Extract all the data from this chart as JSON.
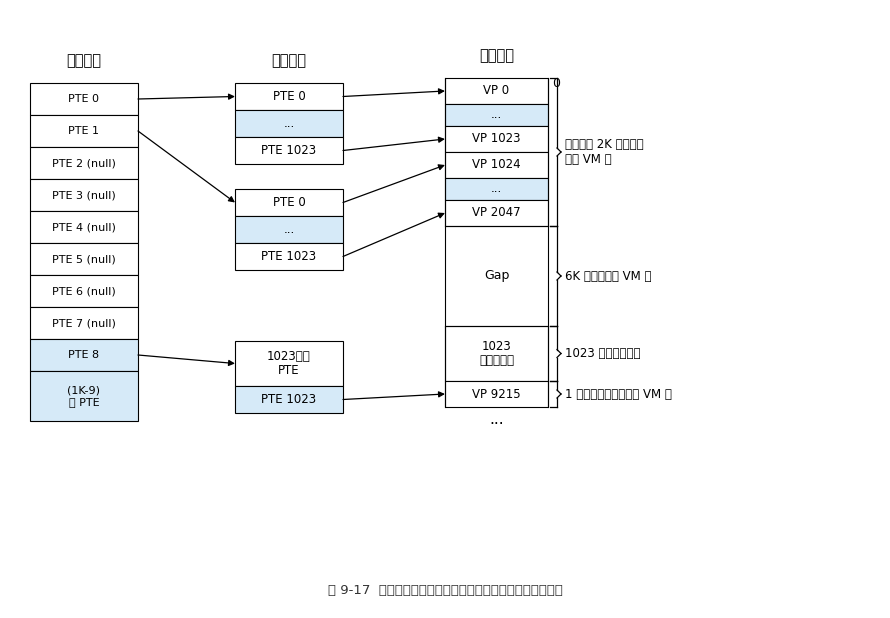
{
  "title": "图 9-17  一个两级页表层次结构。注意地址是从上往下增加的",
  "header_l1": "一级页表",
  "header_l2": "二级页表",
  "header_vm": "虚拟内存",
  "l1_entries": [
    "PTE 0",
    "PTE 1",
    "PTE 2 (null)",
    "PTE 3 (null)",
    "PTE 4 (null)",
    "PTE 5 (null)",
    "PTE 6 (null)",
    "PTE 7 (null)",
    "PTE 8",
    "(1K-9)\n空 PTE"
  ],
  "l1_highlight": [
    0,
    1,
    8
  ],
  "l1_highlight_last": [
    9
  ],
  "l2a_entries": [
    "PTE 0",
    "...",
    "PTE 1023"
  ],
  "l2a_highlight": [
    1
  ],
  "l2b_entries": [
    "PTE 0",
    "...",
    "PTE 1023"
  ],
  "l2b_highlight": [
    1
  ],
  "l2c_entries": [
    "1023个空\nPTE",
    "PTE 1023"
  ],
  "l2c_highlight": [
    1
  ],
  "vm_entries": [
    "VP 0",
    "...",
    "VP 1023",
    "VP 1024",
    "...",
    "VP 2047",
    "Gap",
    "1023\n未分配的页",
    "VP 9215"
  ],
  "vm_highlight": [
    1,
    4
  ],
  "vm_nobox": [
    6
  ],
  "annotation_2k": "已分配的 2K 个代码和\n数据 VM 页",
  "annotation_6k": "6K 个未分配的 VM 页",
  "annotation_1023": "1023 个未分配的页",
  "annotation_stack": "1 个已分配的用做栈的 VM 页",
  "bg_color": "#FFFFFF",
  "box_color": "#FFFFFF",
  "highlight_color": "#D6EAF8",
  "border_color": "#000000",
  "arrow_color": "#000000",
  "text_color": "#000000"
}
